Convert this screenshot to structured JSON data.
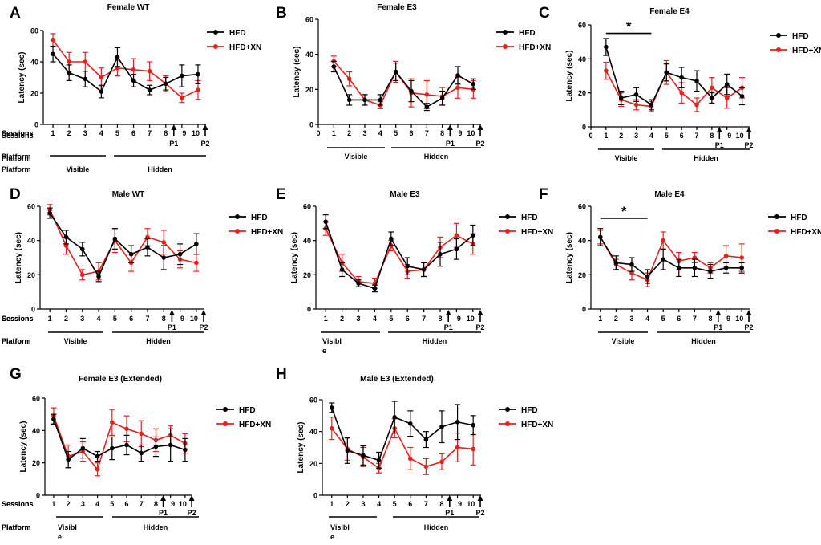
{
  "colors": {
    "hfd": "#000000",
    "hfd_xn": "#e8201c",
    "axis": "#000000"
  },
  "labels": {
    "sessions": "Sessions",
    "platform": "Platform",
    "visible": "Visible",
    "hidden": "Hidden",
    "visible_wrapped": [
      "Visibl",
      "e"
    ],
    "p1": "P1",
    "p2": "P2",
    "significance": "*"
  },
  "chart_data": [
    {
      "panel": "A",
      "type": "line",
      "title": "Female WT",
      "ylabel": "Latency (sec)",
      "xlabel": "Sessions",
      "ylim": [
        0,
        60
      ],
      "yticks": [
        0,
        20,
        40,
        60
      ],
      "categories": [
        "1",
        "2",
        "3",
        "4",
        "5",
        "6",
        "7",
        "8",
        "9",
        "10"
      ],
      "x_zero_tick": false,
      "visible_label_wrapped": false,
      "significance": null,
      "series": [
        {
          "name": "HFD",
          "values": [
            45,
            33,
            29,
            21,
            43,
            28,
            22,
            26,
            31,
            32
          ],
          "errors": [
            5,
            5,
            5,
            4,
            6,
            4,
            3,
            4,
            7,
            6
          ]
        },
        {
          "name": "HFD+XN",
          "values": [
            54,
            40,
            40,
            30,
            36,
            35,
            34,
            26,
            17,
            22
          ],
          "errors": [
            4,
            6,
            6,
            6,
            5,
            7,
            6,
            5,
            3,
            6
          ]
        }
      ]
    },
    {
      "panel": "B",
      "type": "line",
      "title": "Female E3",
      "ylabel": "Latency (sec)",
      "xlabel": "Sessions",
      "ylim": [
        0,
        60
      ],
      "yticks": [
        0,
        20,
        40,
        60
      ],
      "categories": [
        "1",
        "2",
        "3",
        "4",
        "5",
        "6",
        "7",
        "8",
        "9",
        "10"
      ],
      "x_zero_tick": true,
      "visible_label_wrapped": false,
      "significance": null,
      "series": [
        {
          "name": "HFD",
          "values": [
            33,
            14,
            14,
            14,
            30,
            19,
            10,
            15,
            28,
            23
          ],
          "errors": [
            3,
            3,
            3,
            3,
            5,
            6,
            2,
            4,
            5,
            3
          ]
        },
        {
          "name": "HFD+XN",
          "values": [
            36,
            26,
            14,
            11,
            30,
            18,
            17,
            16,
            21,
            20
          ],
          "errors": [
            3,
            4,
            3,
            2,
            6,
            8,
            8,
            5,
            6,
            5
          ]
        }
      ]
    },
    {
      "panel": "C",
      "type": "line",
      "title": "Female E4",
      "ylabel": "Latency (sec)",
      "xlabel": "Sessions",
      "ylim": [
        0,
        60
      ],
      "yticks": [
        0,
        20,
        40,
        60
      ],
      "categories": [
        "1",
        "2",
        "3",
        "4",
        "5",
        "6",
        "7",
        "8",
        "9",
        "10"
      ],
      "x_zero_tick": true,
      "visible_label_wrapped": false,
      "significance": {
        "from": 1,
        "to": 4,
        "level": 55
      },
      "series": [
        {
          "name": "HFD",
          "values": [
            47,
            17,
            19,
            13,
            32,
            29,
            27,
            17,
            25,
            18
          ],
          "errors": [
            5,
            4,
            4,
            3,
            5,
            6,
            6,
            3,
            6,
            5
          ]
        },
        {
          "name": "HFD+XN",
          "values": [
            33,
            16,
            13,
            12,
            32,
            20,
            13,
            23,
            17,
            23
          ],
          "errors": [
            5,
            4,
            3,
            3,
            7,
            6,
            4,
            6,
            6,
            6
          ]
        }
      ]
    },
    {
      "panel": "D",
      "type": "line",
      "title": "Male WT",
      "ylabel": "Latency (sec)",
      "xlabel": "Sessions",
      "ylim": [
        0,
        60
      ],
      "yticks": [
        0,
        20,
        40,
        60
      ],
      "categories": [
        "1",
        "2",
        "3",
        "4",
        "5",
        "6",
        "7",
        "8",
        "9",
        "10"
      ],
      "x_zero_tick": false,
      "visible_label_wrapped": false,
      "significance": null,
      "series": [
        {
          "name": "HFD",
          "values": [
            56,
            42,
            35,
            19,
            41,
            32,
            36,
            30,
            32,
            38
          ],
          "errors": [
            3,
            4,
            4,
            3,
            6,
            5,
            5,
            7,
            6,
            6
          ]
        },
        {
          "name": "HFD+XN",
          "values": [
            58,
            37,
            20,
            22,
            40,
            27,
            42,
            39,
            29,
            27
          ],
          "errors": [
            3,
            5,
            3,
            5,
            7,
            5,
            5,
            7,
            5,
            5
          ]
        }
      ]
    },
    {
      "panel": "E",
      "type": "line",
      "title": "Male E3",
      "ylabel": "Latency (sec)",
      "xlabel": "Sessions",
      "ylim": [
        0,
        60
      ],
      "yticks": [
        0,
        20,
        40,
        60
      ],
      "categories": [
        "1",
        "2",
        "3",
        "4",
        "5",
        "6",
        "7",
        "8",
        "9",
        "10"
      ],
      "x_zero_tick": false,
      "visible_label_wrapped": true,
      "significance": null,
      "series": [
        {
          "name": "HFD",
          "values": [
            51,
            23,
            15,
            12,
            41,
            25,
            23,
            32,
            35,
            43
          ],
          "errors": [
            4,
            4,
            2,
            2,
            4,
            5,
            4,
            7,
            6,
            6
          ]
        },
        {
          "name": "HFD+XN",
          "values": [
            47,
            27,
            16,
            15,
            37,
            22,
            23,
            36,
            43,
            38
          ],
          "errors": [
            4,
            5,
            3,
            3,
            3,
            4,
            4,
            6,
            7,
            6
          ]
        }
      ]
    },
    {
      "panel": "F",
      "type": "line",
      "title": "Male E4",
      "ylabel": "Latency (sec)",
      "xlabel": "Sessions",
      "ylim": [
        0,
        60
      ],
      "yticks": [
        0,
        20,
        40,
        60
      ],
      "categories": [
        "1",
        "2",
        "3",
        "4",
        "5",
        "6",
        "7",
        "8",
        "9",
        "10"
      ],
      "x_zero_tick": false,
      "visible_label_wrapped": false,
      "significance": {
        "from": 1,
        "to": 4,
        "level": 53
      },
      "series": [
        {
          "name": "HFD",
          "values": [
            42,
            27,
            26,
            19,
            29,
            24,
            24,
            22,
            24,
            24
          ],
          "errors": [
            5,
            4,
            4,
            4,
            6,
            5,
            5,
            4,
            3,
            3
          ]
        },
        {
          "name": "HFD+XN",
          "values": [
            42,
            26,
            21,
            17,
            40,
            28,
            30,
            24,
            31,
            30
          ],
          "errors": [
            4,
            3,
            4,
            4,
            5,
            5,
            3,
            3,
            6,
            8
          ]
        }
      ]
    },
    {
      "panel": "G",
      "type": "line",
      "title": "Female E3 (Extended)",
      "ylabel": "Latency (sec)",
      "xlabel": "Sessions",
      "ylim": [
        0,
        60
      ],
      "yticks": [
        0,
        20,
        40,
        60
      ],
      "categories": [
        "1",
        "2",
        "3",
        "4",
        "5",
        "6",
        "7",
        "8",
        "9",
        "10"
      ],
      "x_zero_tick": false,
      "visible_label_wrapped": true,
      "significance": null,
      "series": [
        {
          "name": "HFD",
          "values": [
            47,
            22,
            29,
            24,
            29,
            31,
            26,
            30,
            31,
            28
          ],
          "errors": [
            3,
            5,
            6,
            3,
            7,
            6,
            5,
            6,
            10,
            7
          ]
        },
        {
          "name": "HFD+XN",
          "values": [
            49,
            24,
            27,
            16,
            45,
            41,
            38,
            34,
            37,
            32
          ],
          "errors": [
            5,
            7,
            6,
            4,
            8,
            8,
            8,
            7,
            6,
            6
          ]
        }
      ]
    },
    {
      "panel": "H",
      "type": "line",
      "title": "Male E3 (Extended)",
      "ylabel": "Latency (sec)",
      "xlabel": "Sessions",
      "ylim": [
        0,
        60
      ],
      "yticks": [
        0,
        20,
        40,
        60
      ],
      "categories": [
        "1",
        "2",
        "3",
        "4",
        "5",
        "6",
        "7",
        "8",
        "9",
        "10"
      ],
      "x_zero_tick": false,
      "visible_label_wrapped": true,
      "significance": null,
      "series": [
        {
          "name": "HFD",
          "values": [
            55,
            28,
            25,
            22,
            49,
            45,
            35,
            43,
            46,
            44
          ],
          "errors": [
            3,
            8,
            6,
            5,
            10,
            8,
            5,
            10,
            11,
            6
          ]
        },
        {
          "name": "HFD+XN",
          "values": [
            42,
            29,
            24,
            17,
            42,
            23,
            18,
            21,
            30,
            29
          ],
          "errors": [
            7,
            7,
            6,
            3,
            6,
            7,
            5,
            5,
            9,
            10
          ]
        }
      ]
    }
  ]
}
